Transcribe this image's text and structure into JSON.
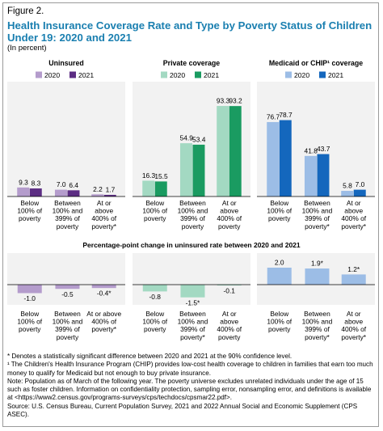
{
  "figure_label": "Figure 2.",
  "title": "Health Insurance Coverage Rate and Type by Poverty Status of Children Under 19: 2020 and 2021",
  "subtitle": "(In percent)",
  "bottom_heading": "Percentage-point change in uninsured rate between 2020 and 2021",
  "footnotes": [
    "* Denotes a statistically significant difference between 2020 and 2021 at the 90% confidence level.",
    "¹ The Children's Health Insurance Program (CHIP) provides low-cost health coverage to children in families that earn too much money to qualify for Medicaid but not enough to buy private insurance.",
    "Note: Population as of March of the following year. The poverty universe excludes unrelated individuals under the age of 15 such as foster children. Information on confidentiality protection, sampling error, nonsampling error, and definitions is available at <https://www2.census.gov/programs-surveys/cps/techdocs/cpsmar22.pdf>.",
    "Source: U.S. Census Bureau, Current Population Survey, 2021 and 2022 Annual Social and Economic Supplement (CPS ASEC)."
  ],
  "chart_data": [
    {
      "type": "bar",
      "title": "Uninsured",
      "categories": [
        "Below|100% of|poverty",
        "Between|100% and|399% of|poverty",
        "At or|above|400% of|poverty*"
      ],
      "series": [
        {
          "name": "2020",
          "color": "#b49ccc",
          "values": [
            9.3,
            7.0,
            2.2
          ],
          "labels": [
            "9.3",
            "7.0",
            "2.2"
          ]
        },
        {
          "name": "2021",
          "color": "#5c2d83",
          "values": [
            8.3,
            6.4,
            1.7
          ],
          "labels": [
            "8.3",
            "6.4",
            "1.7"
          ]
        }
      ],
      "ylim": [
        0,
        100
      ]
    },
    {
      "type": "bar",
      "title": "Private coverage",
      "categories": [
        "Below|100% of|poverty",
        "Between|100% and|399% of|poverty",
        "At or|above|400% of|poverty"
      ],
      "series": [
        {
          "name": "2020",
          "color": "#a3d9c2",
          "values": [
            16.3,
            54.9,
            93.3
          ],
          "labels": [
            "16.3",
            "54.9",
            "93.3"
          ]
        },
        {
          "name": "2021",
          "color": "#1a9b61",
          "values": [
            15.5,
            53.4,
            93.2
          ],
          "labels": [
            "15.5",
            "53.4",
            "93.2"
          ]
        }
      ],
      "ylim": [
        0,
        100
      ]
    },
    {
      "type": "bar",
      "title": "Medicaid or CHIP¹ coverage",
      "categories": [
        "Below|100% of|poverty",
        "Between|100% and|399% of|poverty*",
        "At or|above|400% of|poverty*"
      ],
      "series": [
        {
          "name": "2020",
          "color": "#9cbde6",
          "values": [
            76.7,
            41.8,
            5.8
          ],
          "labels": [
            "76.7",
            "41.8",
            "5.8"
          ]
        },
        {
          "name": "2021",
          "color": "#1467bd",
          "values": [
            78.7,
            43.7,
            7.0
          ],
          "labels": [
            "78.7",
            "43.7",
            "7.0"
          ]
        }
      ],
      "ylim": [
        0,
        100
      ]
    },
    {
      "type": "bar",
      "categories": [
        "Below|100% of|poverty",
        "Between|100% and|399% of|poverty",
        "At or above|400% of|poverty*"
      ],
      "values": [
        -1.0,
        -0.5,
        -0.4
      ],
      "labels": [
        "-1.0",
        "-0.5",
        "-0.4*"
      ],
      "color": "#b49ccc"
    },
    {
      "type": "bar",
      "categories": [
        "Below|100% of|poverty",
        "Between|100% and|399% of|poverty*",
        "At or|above|400% of|poverty"
      ],
      "values": [
        -0.8,
        -1.5,
        -0.1
      ],
      "labels": [
        "-0.8",
        "-1.5*",
        "-0.1"
      ],
      "color": "#a3d9c2"
    },
    {
      "type": "bar",
      "categories": [
        "Below|100% of|poverty",
        "Between|100% and|399% of|poverty*",
        "At or|above|400% of|poverty*"
      ],
      "values": [
        2.0,
        1.9,
        1.2
      ],
      "labels": [
        "2.0",
        "1.9*",
        "1.2*"
      ],
      "color": "#9cbde6"
    }
  ]
}
